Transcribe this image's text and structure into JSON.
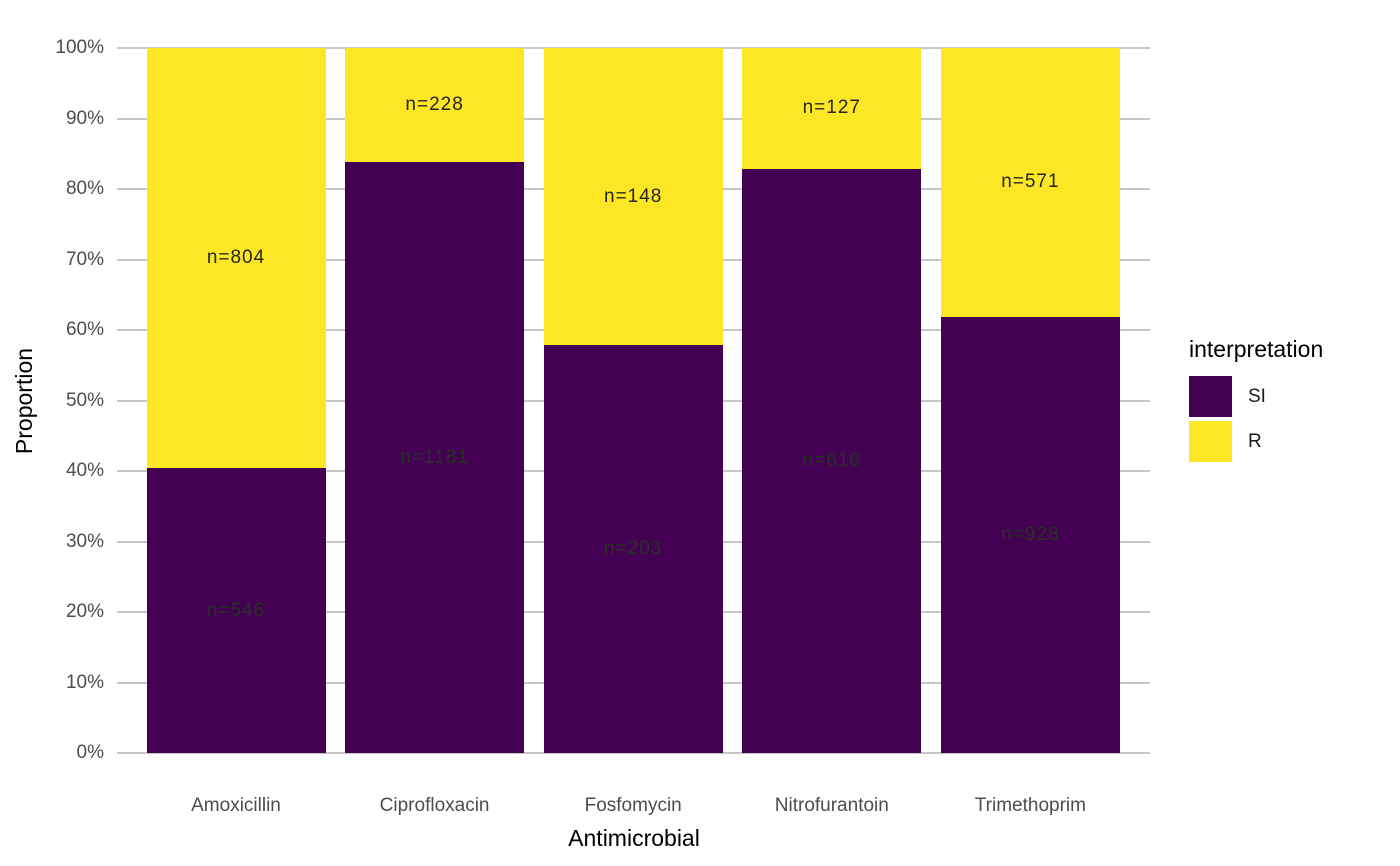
{
  "chart_data": {
    "type": "bar",
    "subtype": "stacked-100-percent",
    "title": "",
    "xlabel": "Antimicrobial",
    "ylabel": "Proportion",
    "categories": [
      "Amoxicillin",
      "Ciprofloxacin",
      "Fosfomycin",
      "Nitrofurantoin",
      "Trimethoprim"
    ],
    "series": [
      {
        "name": "SI",
        "color": "#440154",
        "stack_position": "bottom",
        "values": [
          546,
          1181,
          203,
          616,
          928
        ],
        "bar_labels": [
          "n=546",
          "n=1181",
          "n=203",
          "n=616",
          "n=928"
        ]
      },
      {
        "name": "R",
        "color": "#FDE725",
        "stack_position": "top",
        "values": [
          804,
          228,
          148,
          127,
          571
        ],
        "bar_labels": [
          "n=804",
          "n=228",
          "n=148",
          "n=127",
          "n=571"
        ]
      }
    ],
    "y_axis": {
      "min": 0,
      "max": 1,
      "tick_labels": [
        "0%",
        "10%",
        "20%",
        "30%",
        "40%",
        "50%",
        "60%",
        "70%",
        "80%",
        "90%",
        "100%"
      ],
      "grid": true
    },
    "legend": {
      "title": "interpretation",
      "position": "right",
      "items": [
        {
          "label": "SI",
          "color": "#440154"
        },
        {
          "label": "R",
          "color": "#FDE725"
        }
      ]
    }
  }
}
